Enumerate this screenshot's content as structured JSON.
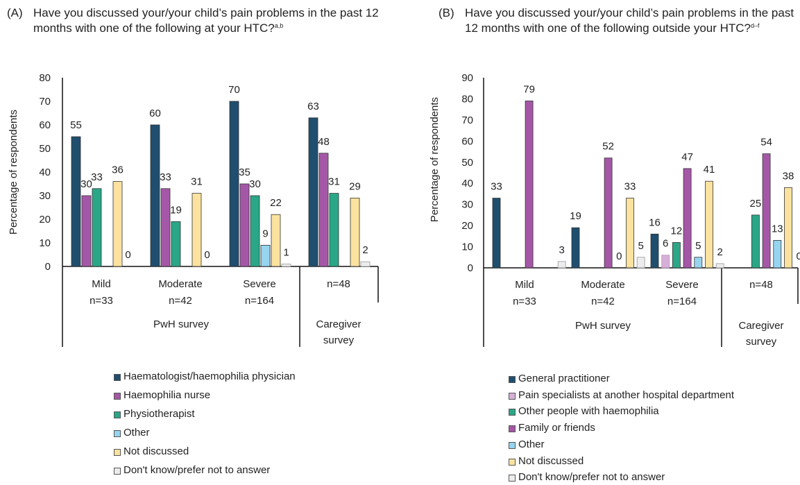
{
  "chart_data": [
    {
      "type": "bar",
      "panel_letter": "(A)",
      "title": "Have you discussed your/your child’s pain problems in the past 12 months with one of the following at your HTC?",
      "title_superscript": "a,b",
      "ylabel": "Percentage of respondents",
      "ylim": [
        0,
        80
      ],
      "yticks": [
        0,
        10,
        20,
        30,
        40,
        50,
        60,
        70,
        80
      ],
      "groups": [
        {
          "label": "Mild",
          "n": "n=33",
          "values": [
            55,
            30,
            33,
            null,
            36,
            0
          ]
        },
        {
          "label": "Moderate",
          "n": "n=42",
          "values": [
            60,
            33,
            19,
            null,
            31,
            0
          ]
        },
        {
          "label": "Severe",
          "n": "n=164",
          "values": [
            70,
            35,
            30,
            9,
            22,
            1
          ]
        },
        {
          "label": "",
          "n": "n=48",
          "values": [
            63,
            48,
            31,
            null,
            29,
            2
          ]
        }
      ],
      "surveys": [
        "PwH survey",
        "Caregiver survey"
      ],
      "series": [
        {
          "name": "Haematologist/haemophilia physician",
          "color": "#1f4e6e"
        },
        {
          "name": "Haemophilia nurse",
          "color": "#a557a7"
        },
        {
          "name": "Physiotherapist",
          "color": "#2aa787"
        },
        {
          "name": "Other",
          "color": "#96d4f0"
        },
        {
          "name": "Not discussed",
          "color": "#fbe29f"
        },
        {
          "name": "Don't know/prefer not to answer",
          "color": "#ececec"
        }
      ],
      "legend_position": "bottom"
    },
    {
      "type": "bar",
      "panel_letter": "(B)",
      "title": "Have you discussed your/your child’s pain problems in the past 12 months with one of the following outside your HTC?",
      "title_superscript": "d–f",
      "ylabel": "Percentage of respondents",
      "ylim": [
        0,
        90
      ],
      "yticks": [
        0,
        10,
        20,
        30,
        40,
        50,
        60,
        70,
        80,
        90
      ],
      "groups": [
        {
          "label": "Mild",
          "n": "n=33",
          "values": [
            33,
            null,
            null,
            79,
            null,
            null,
            3
          ]
        },
        {
          "label": "Moderate",
          "n": "n=42",
          "values": [
            19,
            null,
            null,
            52,
            null,
            33,
            5
          ],
          "zero_label": "0"
        },
        {
          "label": "Severe",
          "n": "n=164",
          "values": [
            16,
            6,
            12,
            47,
            5,
            41,
            2
          ]
        },
        {
          "label": "",
          "n": "n=48",
          "values": [
            null,
            null,
            25,
            54,
            13,
            38,
            0
          ]
        }
      ],
      "surveys": [
        "PwH survey",
        "Caregiver survey"
      ],
      "series": [
        {
          "name": "General practitioner",
          "color": "#1f4e6e"
        },
        {
          "name": "Pain specialists at another hospital department",
          "color": "#d6b0d8"
        },
        {
          "name": "Other people with haemophilia",
          "color": "#2aa787"
        },
        {
          "name": "Family or friends",
          "color": "#a557a7"
        },
        {
          "name": "Other",
          "color": "#96d4f0"
        },
        {
          "name": "Not discussed",
          "color": "#fbe29f"
        },
        {
          "name": "Don't know/prefer not to answer",
          "color": "#ececec"
        }
      ],
      "legend_position": "bottom"
    }
  ]
}
